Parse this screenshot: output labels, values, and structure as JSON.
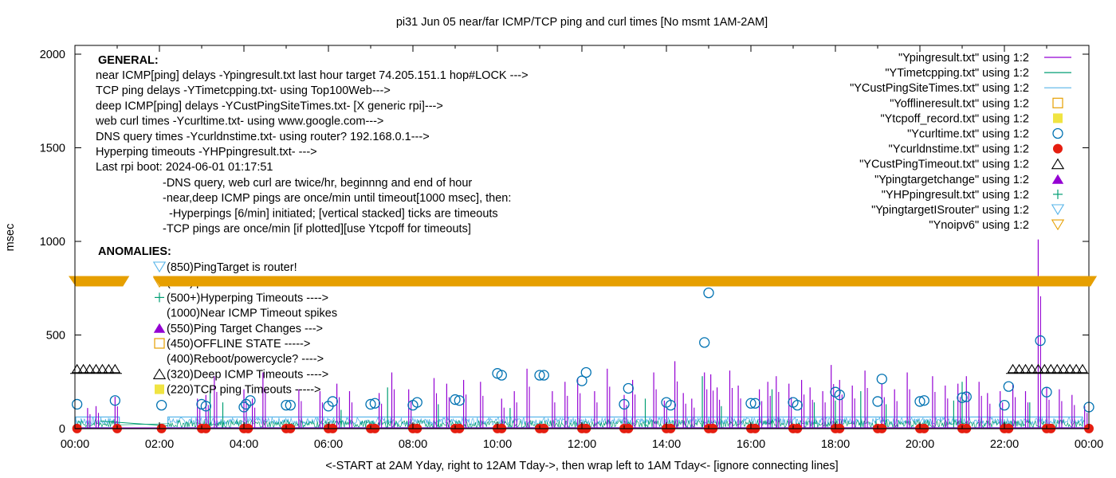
{
  "chart_data": {
    "type": "line",
    "title": "pi31 Jun 05  near/far ICMP/TCP ping and curl times [No msmt 1AM-2AM]",
    "xlabel": "<-START at 2AM Yday, right to 12AM Tday->, then wrap left to 1AM Tday<- [ignore connecting lines]",
    "ylabel": "msec",
    "xlim_hours": [
      0,
      24
    ],
    "ylim": [
      0,
      2000
    ],
    "x_ticks": [
      "00:00",
      "02:00",
      "04:00",
      "06:00",
      "08:00",
      "10:00",
      "12:00",
      "14:00",
      "16:00",
      "18:00",
      "20:00",
      "22:00",
      "00:00"
    ],
    "y_ticks": [
      "0",
      "500",
      "1000",
      "1500",
      "2000"
    ],
    "grid": false,
    "legend_position": "top-right",
    "annotations": {
      "general_header": "GENERAL:",
      "general_lines": [
        "near ICMP[ping] delays -Ypingresult.txt last hour target 74.205.151.1 hop#LOCK --->",
        "TCP ping delays -YTimetcpping.txt- using Top100Web--->",
        "deep ICMP[ping] delays -YCustPingSiteTimes.txt- [X generic rpi]--->",
        "web curl times -Ycurltime.txt- using www.google.com--->",
        "DNS query times -Ycurldnstime.txt- using router? 192.168.0.1--->",
        "Hyperping timeouts -YHPpingresult.txt- --->",
        "Last rpi boot: 2024-06-01 01:17:51"
      ],
      "notes": [
        "-DNS query, web curl are twice/hr, beginnng and end of hour",
        "-near,deep ICMP pings are once/min until timeout[1000 msec], then:",
        "  -Hyperpings [6/min] initiated; [vertical stacked] ticks are timeouts",
        "-TCP pings are once/min [if plotted][use Ytcpoff for timeouts]"
      ],
      "anomalies_header": "ANOMALIES:",
      "anomalies": [
        {
          "marker": "triangle-down-open",
          "color": "#56b4e9",
          "text": "(850)PingTarget is router!"
        },
        {
          "marker": "triangle-down-open",
          "color": "#e69f00",
          "text": "(785)ipv6 failed"
        },
        {
          "marker": "plus",
          "color": "#009e73",
          "text": "(500+)Hyperping Timeouts ---->"
        },
        {
          "marker": "none",
          "color": "",
          "text": "(1000)Near ICMP Timeout spikes"
        },
        {
          "marker": "triangle-up-filled",
          "color": "#9400d3",
          "text": "(550)Ping Target Changes --->"
        },
        {
          "marker": "square-open",
          "color": "#e69f00",
          "text": "(450)OFFLINE STATE ----->"
        },
        {
          "marker": "none",
          "color": "",
          "text": "(400)Reboot/powercycle? ---->"
        },
        {
          "marker": "triangle-up-open",
          "color": "#000000",
          "text": "(320)Deep ICMP Timeouts ---->"
        },
        {
          "marker": "square-filled",
          "color": "#f0e442",
          "text": "(220)TCP ping Timeouts ----->"
        }
      ]
    },
    "legend": [
      {
        "label": "\"Ypingresult.txt\" using 1:2",
        "style": "line",
        "color": "#9400d3"
      },
      {
        "label": "\"YTimetcpping.txt\" using 1:2",
        "style": "line",
        "color": "#009e73"
      },
      {
        "label": "\"YCustPingSiteTimes.txt\" using 1:2",
        "style": "line",
        "color": "#56b4e9"
      },
      {
        "label": "\"Yofflineresult.txt\" using 1:2",
        "style": "square-open",
        "color": "#e69f00"
      },
      {
        "label": "\"Ytcpoff_record.txt\" using 1:2",
        "style": "square-filled",
        "color": "#f0e442"
      },
      {
        "label": "\"Ycurltime.txt\" using 1:2",
        "style": "circle-open",
        "color": "#0072b2"
      },
      {
        "label": "\"Ycurldnstime.txt\" using 1:2",
        "style": "circle-filled",
        "color": "#e51e10"
      },
      {
        "label": "\"YCustPingTimeout.txt\" using 1:2",
        "style": "triangle-up-open",
        "color": "#000000"
      },
      {
        "label": "\"Ypingtargetchange\" using 1:2",
        "style": "triangle-up-filled",
        "color": "#9400d3"
      },
      {
        "label": "\"YHPpingresult.txt\" using 1:2",
        "style": "plus",
        "color": "#009e73"
      },
      {
        "label": "\"YpingtargetISrouter\" using 1:2",
        "style": "triangle-down-open",
        "color": "#56b4e9"
      },
      {
        "label": "\"Ynoipv6\" using 1:2",
        "style": "triangle-down-open",
        "color": "#e69f00"
      }
    ],
    "series": [
      {
        "name": "Ycurltime.txt",
        "style": "circle-open",
        "color": "#0072b2",
        "points": [
          [
            0.05,
            130
          ],
          [
            0.95,
            150
          ],
          [
            2.05,
            125
          ],
          [
            3.0,
            130
          ],
          [
            3.1,
            120
          ],
          [
            4.0,
            115
          ],
          [
            4.05,
            130
          ],
          [
            4.15,
            150
          ],
          [
            5.0,
            125
          ],
          [
            5.1,
            125
          ],
          [
            6.0,
            120
          ],
          [
            6.1,
            145
          ],
          [
            7.0,
            130
          ],
          [
            7.1,
            135
          ],
          [
            8.0,
            125
          ],
          [
            8.1,
            140
          ],
          [
            9.0,
            155
          ],
          [
            9.1,
            150
          ],
          [
            10.0,
            295
          ],
          [
            10.1,
            285
          ],
          [
            11.0,
            285
          ],
          [
            11.1,
            285
          ],
          [
            12.0,
            255
          ],
          [
            12.1,
            300
          ],
          [
            13.0,
            130
          ],
          [
            13.1,
            215
          ],
          [
            14.0,
            140
          ],
          [
            14.1,
            125
          ],
          [
            14.9,
            460
          ],
          [
            15.0,
            725
          ],
          [
            16.0,
            135
          ],
          [
            16.1,
            135
          ],
          [
            17.0,
            140
          ],
          [
            17.1,
            125
          ],
          [
            18.0,
            195
          ],
          [
            18.1,
            180
          ],
          [
            19.0,
            145
          ],
          [
            19.1,
            265
          ],
          [
            20.0,
            145
          ],
          [
            20.1,
            150
          ],
          [
            21.0,
            165
          ],
          [
            21.1,
            170
          ],
          [
            22.0,
            125
          ],
          [
            22.1,
            225
          ],
          [
            22.85,
            470
          ],
          [
            23.0,
            195
          ],
          [
            24.0,
            115
          ]
        ]
      },
      {
        "name": "Ycurldnstime.txt",
        "style": "circle-filled",
        "color": "#e51e10",
        "points": [
          [
            0.05,
            5
          ],
          [
            1.0,
            5
          ],
          [
            2.05,
            5
          ],
          [
            3.0,
            5
          ],
          [
            3.1,
            5
          ],
          [
            4.0,
            5
          ],
          [
            4.1,
            5
          ],
          [
            5.0,
            5
          ],
          [
            5.1,
            5
          ],
          [
            6.0,
            5
          ],
          [
            6.1,
            5
          ],
          [
            7.0,
            5
          ],
          [
            7.1,
            5
          ],
          [
            8.0,
            5
          ],
          [
            8.1,
            5
          ],
          [
            9.0,
            5
          ],
          [
            9.1,
            5
          ],
          [
            10.0,
            5
          ],
          [
            10.1,
            5
          ],
          [
            11.0,
            5
          ],
          [
            11.1,
            5
          ],
          [
            12.0,
            5
          ],
          [
            12.1,
            5
          ],
          [
            13.0,
            5
          ],
          [
            13.1,
            5
          ],
          [
            14.0,
            5
          ],
          [
            14.1,
            5
          ],
          [
            15.0,
            5
          ],
          [
            15.1,
            5
          ],
          [
            16.0,
            5
          ],
          [
            16.1,
            5
          ],
          [
            17.0,
            5
          ],
          [
            17.1,
            5
          ],
          [
            18.0,
            5
          ],
          [
            18.1,
            5
          ],
          [
            19.0,
            5
          ],
          [
            19.1,
            5
          ],
          [
            20.0,
            5
          ],
          [
            20.1,
            5
          ],
          [
            21.0,
            5
          ],
          [
            21.1,
            5
          ],
          [
            22.0,
            5
          ],
          [
            22.1,
            5
          ],
          [
            23.0,
            5
          ],
          [
            23.1,
            5
          ],
          [
            24.0,
            5
          ]
        ]
      },
      {
        "name": "YCustPingTimeout.txt",
        "style": "triangle-up-open",
        "color": "#000000",
        "points": [
          [
            0.05,
            320
          ],
          [
            0.2,
            320
          ],
          [
            0.35,
            320
          ],
          [
            0.5,
            320
          ],
          [
            0.65,
            320
          ],
          [
            0.8,
            320
          ],
          [
            0.95,
            320
          ],
          [
            22.2,
            320
          ],
          [
            22.35,
            320
          ],
          [
            22.5,
            320
          ],
          [
            22.65,
            320
          ],
          [
            22.8,
            320
          ],
          [
            22.95,
            320
          ],
          [
            23.1,
            320
          ],
          [
            23.25,
            320
          ],
          [
            23.4,
            320
          ],
          [
            23.55,
            320
          ],
          [
            23.7,
            320
          ],
          [
            23.85,
            320
          ]
        ]
      },
      {
        "name": "Ynoipv6",
        "style": "triangle-down-open",
        "color": "#e69f00",
        "band": {
          "value": 785,
          "segments_hours": [
            [
              0,
              1.1
            ],
            [
              2.0,
              24
            ]
          ]
        }
      },
      {
        "name": "Ypingresult.txt (spikes)",
        "style": "line",
        "color": "#9400d3",
        "spikes": [
          [
            0.3,
            110
          ],
          [
            0.5,
            120
          ],
          [
            0.95,
            170
          ],
          [
            2.9,
            160
          ],
          [
            3.1,
            180
          ],
          [
            3.3,
            280
          ],
          [
            4.0,
            210
          ],
          [
            4.2,
            160
          ],
          [
            4.45,
            300
          ],
          [
            5.3,
            210
          ],
          [
            5.8,
            200
          ],
          [
            6.2,
            240
          ],
          [
            6.5,
            200
          ],
          [
            7.2,
            190
          ],
          [
            7.5,
            300
          ],
          [
            7.9,
            210
          ],
          [
            8.5,
            270
          ],
          [
            8.8,
            240
          ],
          [
            9.2,
            260
          ],
          [
            9.6,
            250
          ],
          [
            10.1,
            160
          ],
          [
            10.4,
            200
          ],
          [
            10.7,
            320
          ],
          [
            11.3,
            200
          ],
          [
            11.6,
            250
          ],
          [
            11.9,
            270
          ],
          [
            12.3,
            200
          ],
          [
            12.6,
            320
          ],
          [
            13.0,
            180
          ],
          [
            13.2,
            260
          ],
          [
            13.7,
            300
          ],
          [
            13.95,
            150
          ],
          [
            14.2,
            360
          ],
          [
            14.4,
            190
          ],
          [
            14.6,
            160
          ],
          [
            14.9,
            300
          ],
          [
            15.05,
            290
          ],
          [
            15.2,
            220
          ],
          [
            15.5,
            310
          ],
          [
            15.7,
            230
          ],
          [
            16.2,
            210
          ],
          [
            16.4,
            250
          ],
          [
            16.6,
            280
          ],
          [
            16.9,
            240
          ],
          [
            17.2,
            260
          ],
          [
            17.4,
            220
          ],
          [
            17.7,
            200
          ],
          [
            17.9,
            340
          ],
          [
            18.1,
            260
          ],
          [
            18.4,
            230
          ],
          [
            18.7,
            310
          ],
          [
            19.1,
            240
          ],
          [
            19.4,
            210
          ],
          [
            19.7,
            300
          ],
          [
            20.3,
            280
          ],
          [
            20.6,
            230
          ],
          [
            20.9,
            240
          ],
          [
            21.1,
            280
          ],
          [
            21.4,
            250
          ],
          [
            21.6,
            190
          ],
          [
            21.9,
            200
          ],
          [
            22.2,
            240
          ],
          [
            22.5,
            200
          ],
          [
            22.8,
            1010
          ],
          [
            23.0,
            220
          ],
          [
            23.3,
            210
          ],
          [
            23.6,
            180
          ],
          [
            23.9,
            120
          ]
        ]
      },
      {
        "name": "YTimetcpping.txt (spikes)",
        "style": "line",
        "color": "#009e73",
        "spikes": [
          [
            3.2,
            200
          ],
          [
            3.5,
            140
          ],
          [
            6.3,
            100
          ],
          [
            7.4,
            220
          ],
          [
            8.6,
            130
          ],
          [
            10.3,
            110
          ],
          [
            13.5,
            160
          ],
          [
            14.85,
            280
          ],
          [
            15.3,
            120
          ],
          [
            16.5,
            210
          ],
          [
            17.5,
            140
          ],
          [
            18.0,
            150
          ],
          [
            18.6,
            200
          ],
          [
            19.2,
            130
          ],
          [
            20.8,
            150
          ],
          [
            21.0,
            250
          ],
          [
            22.6,
            140
          ]
        ]
      },
      {
        "name": "YCustPingSiteTimes.txt (baseline)",
        "style": "line",
        "color": "#56b4e9",
        "baseline_msec": [
          20,
          60
        ]
      }
    ]
  }
}
